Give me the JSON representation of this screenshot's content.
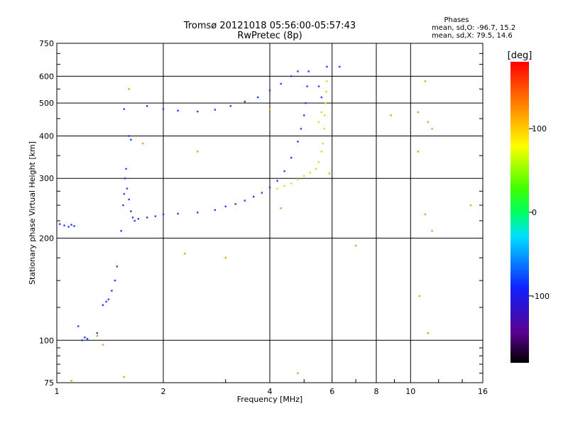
{
  "chart_data": {
    "type": "scatter",
    "title": "Tromsø 20121018 05:56:00-05:57:43",
    "subtitle": "RwPretec (8p)",
    "xlabel": "Frequency [MHz]",
    "ylabel": "Stationary phase Virtual Height [km]",
    "x_scale": "log",
    "y_scale": "log",
    "xlim": [
      1,
      16
    ],
    "ylim": [
      75,
      750
    ],
    "x_ticks": [
      1,
      2,
      4,
      6,
      8,
      10,
      16
    ],
    "x_tick_labels": [
      "1",
      "2",
      "4",
      "6",
      "8",
      "10",
      "16"
    ],
    "y_ticks": [
      75,
      100,
      200,
      300,
      400,
      500,
      600,
      750
    ],
    "y_tick_labels": [
      "75",
      "100",
      "200",
      "300",
      "400",
      "500",
      "600",
      "750"
    ],
    "grid": true,
    "phase_info": {
      "title": "Phases",
      "line_o": "mean, sd,O:  -96.7, 15.2",
      "line_x": "mean, sd,X:  79.5, 14.6"
    },
    "colorbar": {
      "label": "[deg]",
      "range": [
        -180,
        180
      ],
      "ticks": [
        100,
        0,
        -100
      ],
      "tick_labels": [
        "100",
        "0",
        "-100"
      ],
      "colormap": "rainbow"
    },
    "series": [
      {
        "mode": "O",
        "color": "#2a3cf0",
        "points": [
          [
            1.02,
            220
          ],
          [
            1.05,
            218
          ],
          [
            1.08,
            216
          ],
          [
            1.1,
            219
          ],
          [
            1.12,
            217
          ],
          [
            1.15,
            110
          ],
          [
            1.18,
            100
          ],
          [
            1.2,
            102
          ],
          [
            1.22,
            101
          ],
          [
            1.3,
            105
          ],
          [
            1.35,
            127
          ],
          [
            1.38,
            130
          ],
          [
            1.4,
            132
          ],
          [
            1.43,
            140
          ],
          [
            1.46,
            150
          ],
          [
            1.48,
            165
          ],
          [
            1.52,
            210
          ],
          [
            1.54,
            250
          ],
          [
            1.55,
            270
          ],
          [
            1.56,
            300
          ],
          [
            1.57,
            320
          ],
          [
            1.58,
            280
          ],
          [
            1.6,
            260
          ],
          [
            1.62,
            240
          ],
          [
            1.64,
            230
          ],
          [
            1.66,
            225
          ],
          [
            1.7,
            228
          ],
          [
            1.8,
            230
          ],
          [
            1.9,
            232
          ],
          [
            2.0,
            235
          ],
          [
            2.2,
            236
          ],
          [
            2.5,
            238
          ],
          [
            2.8,
            242
          ],
          [
            3.0,
            248
          ],
          [
            3.2,
            252
          ],
          [
            3.4,
            258
          ],
          [
            3.6,
            265
          ],
          [
            3.8,
            272
          ],
          [
            4.0,
            282
          ],
          [
            4.2,
            295
          ],
          [
            4.4,
            315
          ],
          [
            4.6,
            345
          ],
          [
            4.8,
            385
          ],
          [
            4.9,
            420
          ],
          [
            5.0,
            460
          ],
          [
            5.05,
            500
          ],
          [
            5.1,
            560
          ],
          [
            5.15,
            620
          ],
          [
            1.55,
            480
          ],
          [
            1.6,
            400
          ],
          [
            1.62,
            390
          ],
          [
            1.8,
            490
          ],
          [
            2.0,
            480
          ],
          [
            2.2,
            475
          ],
          [
            2.5,
            472
          ],
          [
            2.8,
            478
          ],
          [
            3.1,
            490
          ],
          [
            3.4,
            505
          ],
          [
            3.7,
            520
          ],
          [
            4.0,
            545
          ],
          [
            4.3,
            570
          ],
          [
            4.6,
            600
          ],
          [
            4.8,
            620
          ],
          [
            5.8,
            640
          ],
          [
            6.3,
            640
          ],
          [
            5.5,
            560
          ],
          [
            5.6,
            520
          ]
        ]
      },
      {
        "mode": "X",
        "color": "#c8e61e",
        "points": [
          [
            4.2,
            280
          ],
          [
            4.4,
            285
          ],
          [
            4.6,
            290
          ],
          [
            4.8,
            298
          ],
          [
            5.0,
            305
          ],
          [
            5.2,
            312
          ],
          [
            5.4,
            320
          ],
          [
            5.5,
            335
          ],
          [
            5.6,
            360
          ],
          [
            5.65,
            380
          ],
          [
            5.7,
            420
          ],
          [
            5.72,
            460
          ],
          [
            5.75,
            500
          ],
          [
            5.78,
            540
          ],
          [
            5.8,
            580
          ],
          [
            5.6,
            470
          ],
          [
            5.5,
            440
          ]
        ]
      },
      {
        "mode": "scattered",
        "color": "#e8a020",
        "points": [
          [
            1.6,
            550
          ],
          [
            1.75,
            380
          ],
          [
            2.5,
            360
          ],
          [
            2.3,
            180
          ],
          [
            3.0,
            175
          ],
          [
            4.0,
            480
          ],
          [
            4.3,
            245
          ],
          [
            7.0,
            190
          ],
          [
            8.8,
            460
          ],
          [
            10.5,
            470
          ],
          [
            11.0,
            580
          ],
          [
            11.2,
            440
          ],
          [
            11.5,
            420
          ],
          [
            11.0,
            235
          ],
          [
            11.5,
            210
          ],
          [
            10.5,
            360
          ],
          [
            10.6,
            135
          ],
          [
            11.2,
            105
          ],
          [
            14.8,
            250
          ],
          [
            4.8,
            80
          ],
          [
            5.9,
            310
          ],
          [
            1.3,
            103
          ],
          [
            1.35,
            97
          ],
          [
            1.1,
            76
          ],
          [
            1.55,
            78
          ]
        ]
      }
    ]
  }
}
